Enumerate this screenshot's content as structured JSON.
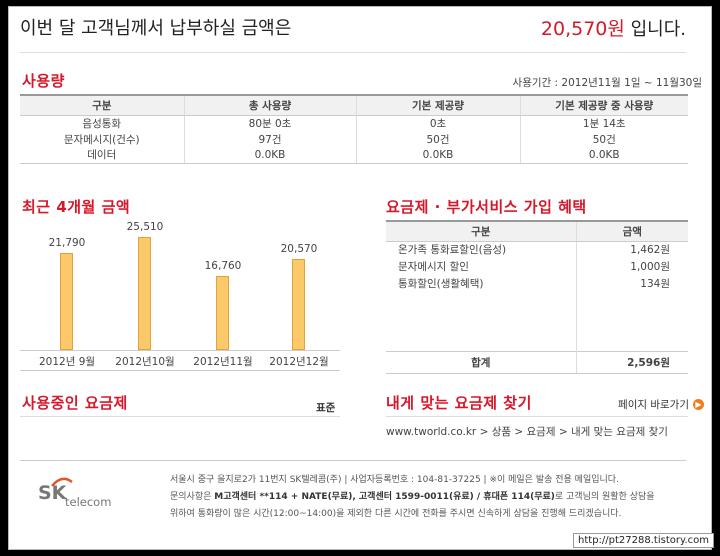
{
  "header": {
    "intro": "이번 달 고객님께서 납부하실 금액은",
    "amount": "20,570원",
    "suffix": "입니다."
  },
  "usage": {
    "title": "사용량",
    "period": "사용기간 : 2012년11월 1일 ~ 11월30일",
    "columns": [
      "구분",
      "총 사용량",
      "기본 제공량",
      "기본 제공량 중 사용량"
    ],
    "rows": [
      [
        "음성통화",
        "80분 0초",
        "0초",
        "1분 14초"
      ],
      [
        "문자메시지(건수)",
        "97건",
        "50건",
        "50건"
      ],
      [
        "데이터",
        "0.0KB",
        "0.0KB",
        "0.0KB"
      ]
    ]
  },
  "recent": {
    "title": "최근 4개월 금액"
  },
  "chart_data": {
    "type": "bar",
    "title": "최근 4개월 금액",
    "categories": [
      "2012년 9월",
      "2012년10월",
      "2012년11월",
      "2012년12월"
    ],
    "values": [
      21790,
      25510,
      16760,
      20570
    ],
    "value_labels": [
      "21,790",
      "25,510",
      "16,760",
      "20,570"
    ],
    "ylim": [
      0,
      27000
    ],
    "color": "#fcc96a"
  },
  "benefit": {
    "title": "요금제 · 부가서비스 가입 혜택",
    "columns": [
      "구분",
      "금액"
    ],
    "rows": [
      [
        "온가족 통화료할인(음성)",
        "1,462원"
      ],
      [
        "문자메시지 할인",
        "1,000원"
      ],
      [
        "통화할인(생활혜택)",
        "134원"
      ]
    ],
    "total_label": "합계",
    "total_value": "2,596원"
  },
  "plan": {
    "title": "사용중인 요금제",
    "value": "표준"
  },
  "find": {
    "title": "내게 맞는 요금제 찾기",
    "shortcut": "페이지 바로가기",
    "path": "www.tworld.co.kr > 상품 > 요금제 > 내게 맞는 요금제 찾기"
  },
  "footer": {
    "logo_sk": "SK",
    "logo_telecom": "telecom",
    "line1": "서울시 중구 을지로2가 11번지 SK텔레콤(주) | 사업자등록번호 : 104-81-37225 | ※이 메일은 발송 전용 메일입니다.",
    "line2_a": "문의사항은 ",
    "line2_b": "M고객센터 **114 + NATE(무료), 고객센터 1599-0011(유료) / 휴대폰 114(무료)",
    "line2_c": "로 고객님의 원활한 상담을",
    "line3": "위하여 통화량이 많은 시간(12:00~14:00)을 제외한 다른 시간에 전화를 주시면 신속하게 상담을 진행해 드리겠습니다."
  },
  "watermark": "http://pt27288.tistory.com"
}
